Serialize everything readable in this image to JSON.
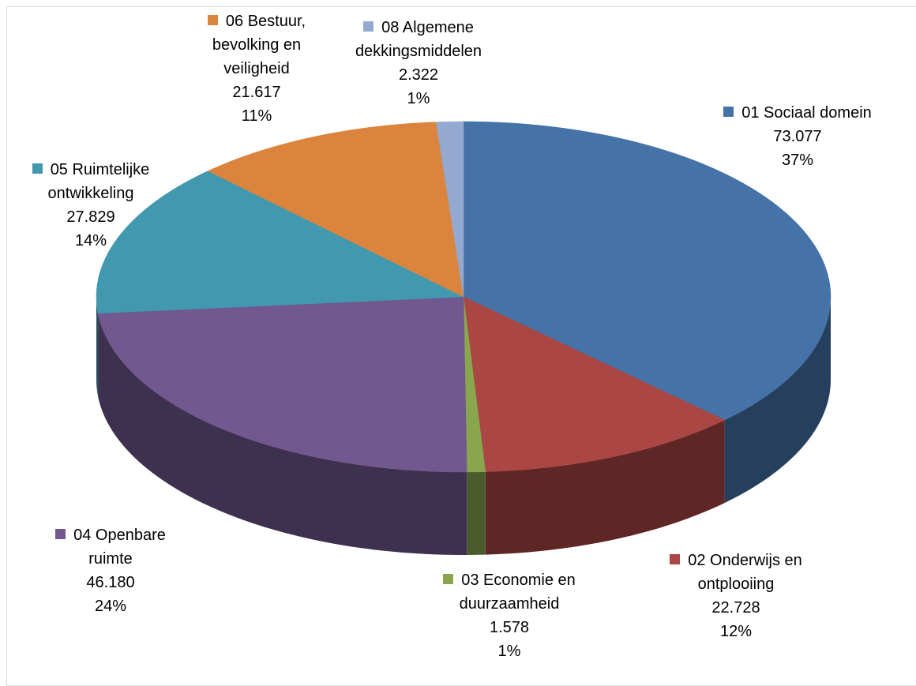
{
  "chart_data": {
    "type": "pie3d",
    "categories": [
      "01 Sociaal domein",
      "02 Onderwijs en ontplooiing",
      "03 Economie en duurzaamheid",
      "04 Openbare ruimte",
      "05 Ruimtelijke ontwikkeling",
      "06 Bestuur, bevolking en veiligheid",
      "08 Algemene dekkingsmiddelen"
    ],
    "values": [
      73.077,
      22.728,
      1.578,
      46.18,
      27.829,
      21.617,
      2.322
    ],
    "value_labels": [
      "73.077",
      "22.728",
      "1.578",
      "46.180",
      "27.829",
      "21.617",
      "2.322"
    ],
    "percent_labels": [
      "37%",
      "12%",
      "1%",
      "24%",
      "14%",
      "11%",
      "1%"
    ],
    "colors": [
      "#4572a7",
      "#aa4643",
      "#89a54e",
      "#71588f",
      "#4198af",
      "#db843d",
      "#93a9cf"
    ]
  }
}
